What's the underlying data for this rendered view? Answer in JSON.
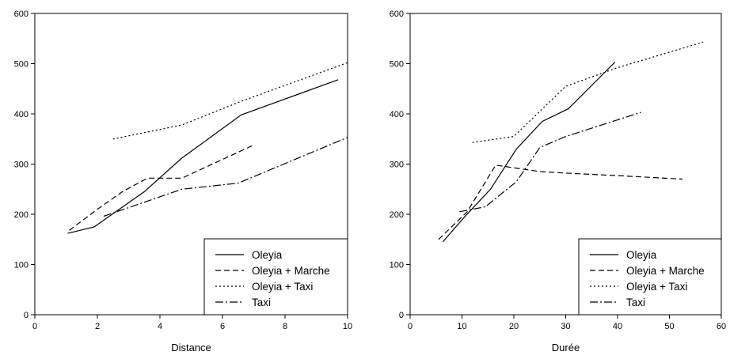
{
  "chart_data": [
    {
      "type": "line",
      "xlabel": "Distance",
      "ylabel": "",
      "xlim": [
        0,
        10
      ],
      "ylim": [
        0,
        600
      ],
      "xticks": [
        0,
        2,
        4,
        6,
        8,
        10
      ],
      "yticks": [
        0,
        100,
        200,
        300,
        400,
        500,
        600
      ],
      "legend_position": "bottom-right",
      "series": [
        {
          "name": "Oleyia",
          "dash": "solid",
          "x": [
            1.05,
            1.9,
            3.5,
            4.7,
            6.6,
            9.7
          ],
          "y": [
            162,
            175,
            245,
            312,
            398,
            468
          ]
        },
        {
          "name": "Oleyia + Marche",
          "dash": "dashed",
          "x": [
            1.1,
            2.0,
            2.8,
            3.6,
            4.7,
            7.0
          ],
          "y": [
            168,
            210,
            245,
            272,
            272,
            338
          ]
        },
        {
          "name": "Oleyia + Taxi",
          "dash": "dotted",
          "x": [
            2.5,
            4.7,
            6.6,
            10.0
          ],
          "y": [
            350,
            378,
            425,
            502
          ]
        },
        {
          "name": "Taxi",
          "dash": "dashdot",
          "x": [
            2.2,
            4.7,
            6.5,
            10.0
          ],
          "y": [
            196,
            250,
            262,
            353
          ]
        }
      ]
    },
    {
      "type": "line",
      "xlabel": "Durée",
      "ylabel": "",
      "xlim": [
        0,
        60
      ],
      "ylim": [
        0,
        600
      ],
      "xticks": [
        0,
        10,
        20,
        30,
        40,
        50,
        60
      ],
      "yticks": [
        0,
        100,
        200,
        300,
        400,
        500,
        600
      ],
      "legend_position": "bottom-right",
      "series": [
        {
          "name": "Oleyia",
          "dash": "solid",
          "x": [
            6.3,
            10.5,
            15.5,
            20.5,
            25.5,
            30.5,
            39.5
          ],
          "y": [
            145,
            195,
            250,
            330,
            385,
            410,
            503
          ]
        },
        {
          "name": "Oleyia + Marche",
          "dash": "dashed",
          "x": [
            5.5,
            11.0,
            16.5,
            25.0,
            30.0,
            40.0,
            52.5
          ],
          "y": [
            150,
            205,
            298,
            285,
            282,
            277,
            270
          ]
        },
        {
          "name": "Oleyia + Taxi",
          "dash": "dotted",
          "x": [
            12.0,
            20.0,
            25.0,
            30.0,
            40.0,
            56.5
          ],
          "y": [
            343,
            355,
            405,
            455,
            492,
            543
          ]
        },
        {
          "name": "Taxi",
          "dash": "dashdot",
          "x": [
            9.5,
            14.5,
            20.5,
            25.0,
            30.0,
            44.5
          ],
          "y": [
            205,
            215,
            265,
            333,
            355,
            403
          ]
        }
      ]
    }
  ]
}
